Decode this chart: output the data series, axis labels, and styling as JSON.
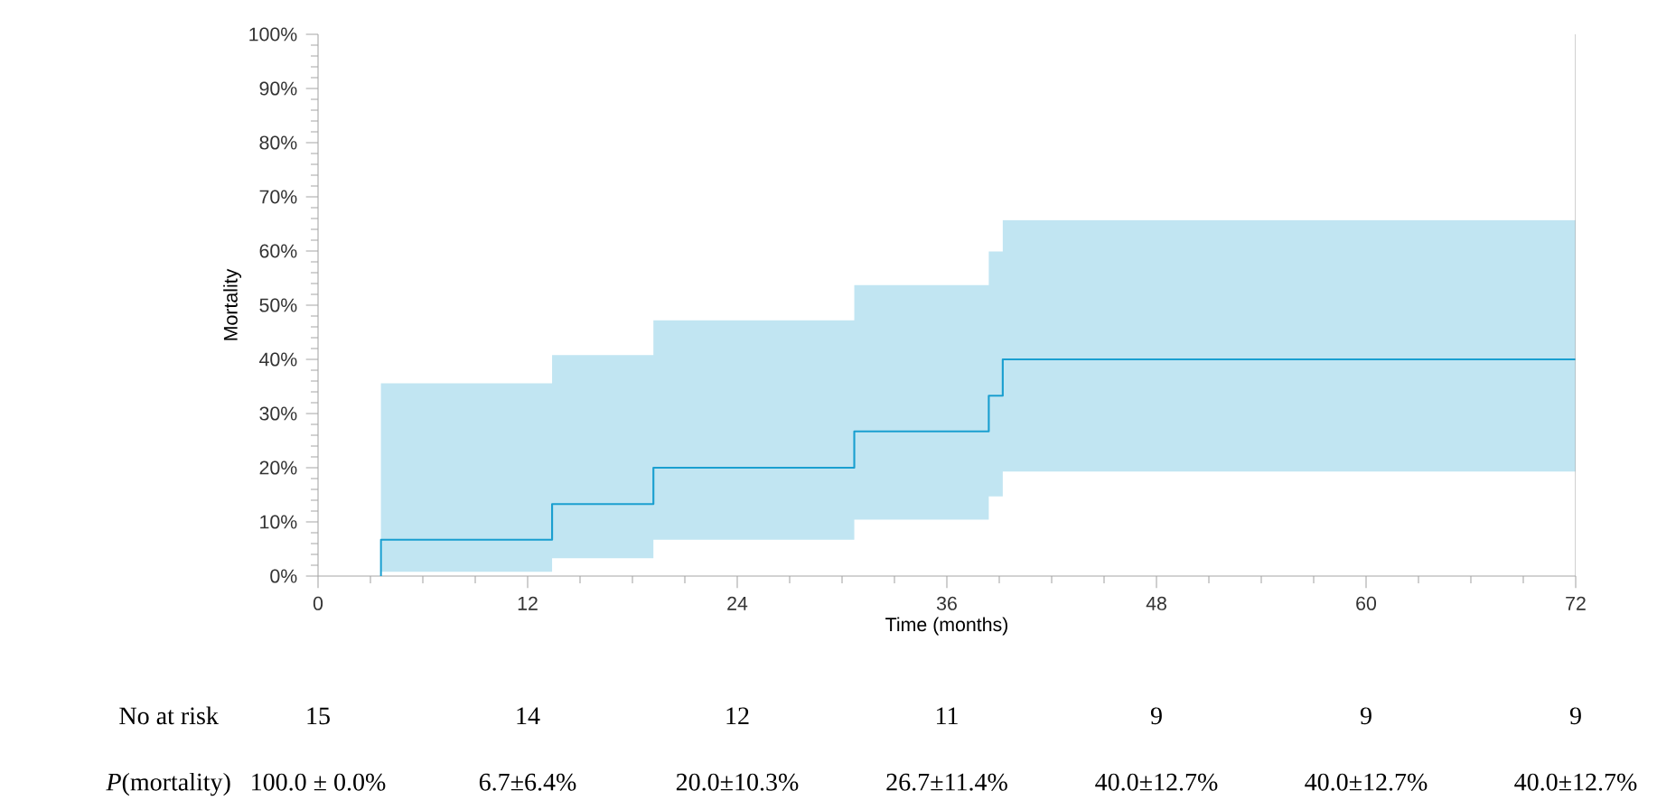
{
  "chart_data": {
    "type": "step",
    "xlabel": "Time (months)",
    "ylabel": "Mortality",
    "x": [
      3.6,
      3.6,
      13.4,
      19.2,
      30.7,
      38.4,
      39.2,
      72
    ],
    "series": [
      {
        "color": "#1a9fd0",
        "values": [
          0,
          6.7,
          13.3,
          20,
          26.7,
          33.3,
          40,
          40
        ],
        "lower": [
          null,
          0.8,
          3.3,
          6.7,
          10.4,
          14.7,
          19.3,
          19.3
        ],
        "upper": [
          null,
          35.6,
          40.8,
          47.2,
          53.7,
          59.9,
          65.7,
          65.7
        ]
      }
    ],
    "xlim": [
      0,
      72
    ],
    "xticks": [
      0,
      12,
      24,
      36,
      48,
      60,
      72
    ],
    "ylim": [
      0,
      100
    ],
    "yticks": [
      {
        "value": 0,
        "label": "0%"
      },
      {
        "value": 10,
        "label": "10%"
      },
      {
        "value": 20,
        "label": "20%"
      },
      {
        "value": 30,
        "label": "30%"
      },
      {
        "value": 40,
        "label": "40%"
      },
      {
        "value": 50,
        "label": "50%"
      },
      {
        "value": 60,
        "label": "60%"
      },
      {
        "value": 70,
        "label": "70%"
      },
      {
        "value": 80,
        "label": "80%"
      },
      {
        "value": 90,
        "label": "90%"
      },
      {
        "value": 100,
        "label": "100%"
      }
    ],
    "annotations": [
      "No at risk",
      "15",
      "14",
      "12",
      "11",
      "9",
      "9",
      "9",
      "*P*(mortality)",
      "100.0 ± 0.0%",
      "6.7±6.4%",
      "20.0±10.3%",
      "26.7±11.4%",
      "40.0±12.7%",
      "40.0±12.7%",
      "40.0±12.7%"
    ]
  }
}
